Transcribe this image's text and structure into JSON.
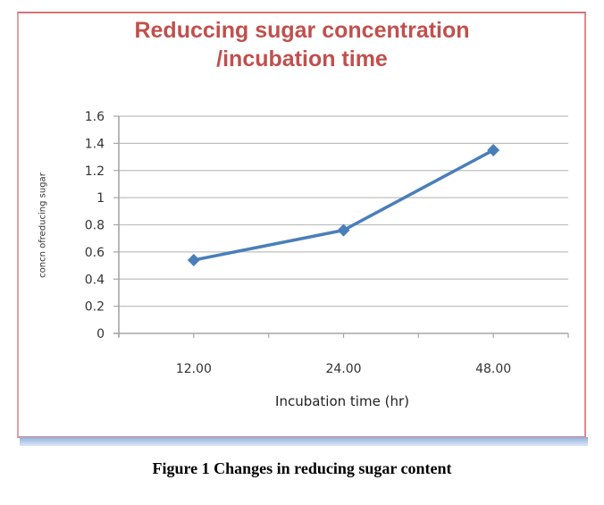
{
  "chart_data": {
    "type": "line",
    "title": "Reduccing sugar concentration /incubation time",
    "title_lines": [
      "Reduccing sugar concentration",
      "/incubation time"
    ],
    "xlabel": "Incubation time (hr)",
    "ylabel": "concn ofreducing sugar",
    "categories": [
      "12.00",
      "24.00",
      "48.00"
    ],
    "series": [
      {
        "name": "Reducing sugar",
        "values": [
          0.54,
          0.76,
          1.35
        ],
        "color": "#4a7ebb",
        "marker": "diamond"
      }
    ],
    "ylim": [
      0,
      1.6
    ],
    "yticks": [
      "0",
      "0.2",
      "0.4",
      "0.6",
      "0.8",
      "1",
      "1.2",
      "1.4",
      "1.6"
    ],
    "ytick_values": [
      0,
      0.2,
      0.4,
      0.6,
      0.8,
      1,
      1.2,
      1.4,
      1.6
    ],
    "grid": true,
    "legend": "none"
  },
  "caption": "Figure 1 Changes in reducing sugar content",
  "colors": {
    "title": "#c0504d",
    "frame": "#d98a8c",
    "line": "#4a7ebb",
    "grid": "#bfbfbf"
  }
}
